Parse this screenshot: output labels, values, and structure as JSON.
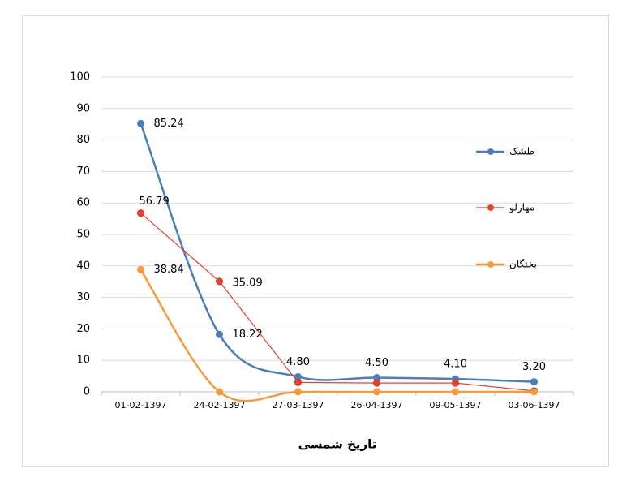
{
  "chart_data": {
    "type": "line",
    "x_label": "تاریخ شمسی",
    "categories": [
      "01-02-1397",
      "24-02-1397",
      "27-03-1397",
      "26-04-1397",
      "09-05-1397",
      "03-06-1397"
    ],
    "series": [
      {
        "name": "طشک",
        "color": "#4a7ebb",
        "smooth": true,
        "values": [
          85.24,
          18.22,
          4.8,
          4.5,
          4.1,
          3.2
        ],
        "value_labels": [
          "85.24",
          "18.22",
          "4.80",
          "4.50",
          "4.10",
          "3.20"
        ]
      },
      {
        "name": "مهارلو",
        "color": "#e8412a",
        "smooth": false,
        "values": [
          56.79,
          35.09,
          3.0,
          2.8,
          2.8,
          0.3
        ],
        "value_labels": [
          "56.79",
          "35.09",
          null,
          null,
          null,
          null
        ]
      },
      {
        "name": "بختگان",
        "color": "#f79a3e",
        "smooth": true,
        "values": [
          38.84,
          0,
          0,
          0,
          0,
          0
        ],
        "value_labels": [
          "38.84",
          null,
          null,
          null,
          null,
          null
        ]
      }
    ],
    "ylim": [
      0,
      100
    ],
    "yticks": [
      0,
      10,
      20,
      30,
      40,
      50,
      60,
      70,
      80,
      90,
      100
    ],
    "grid": true,
    "legend": "right"
  }
}
